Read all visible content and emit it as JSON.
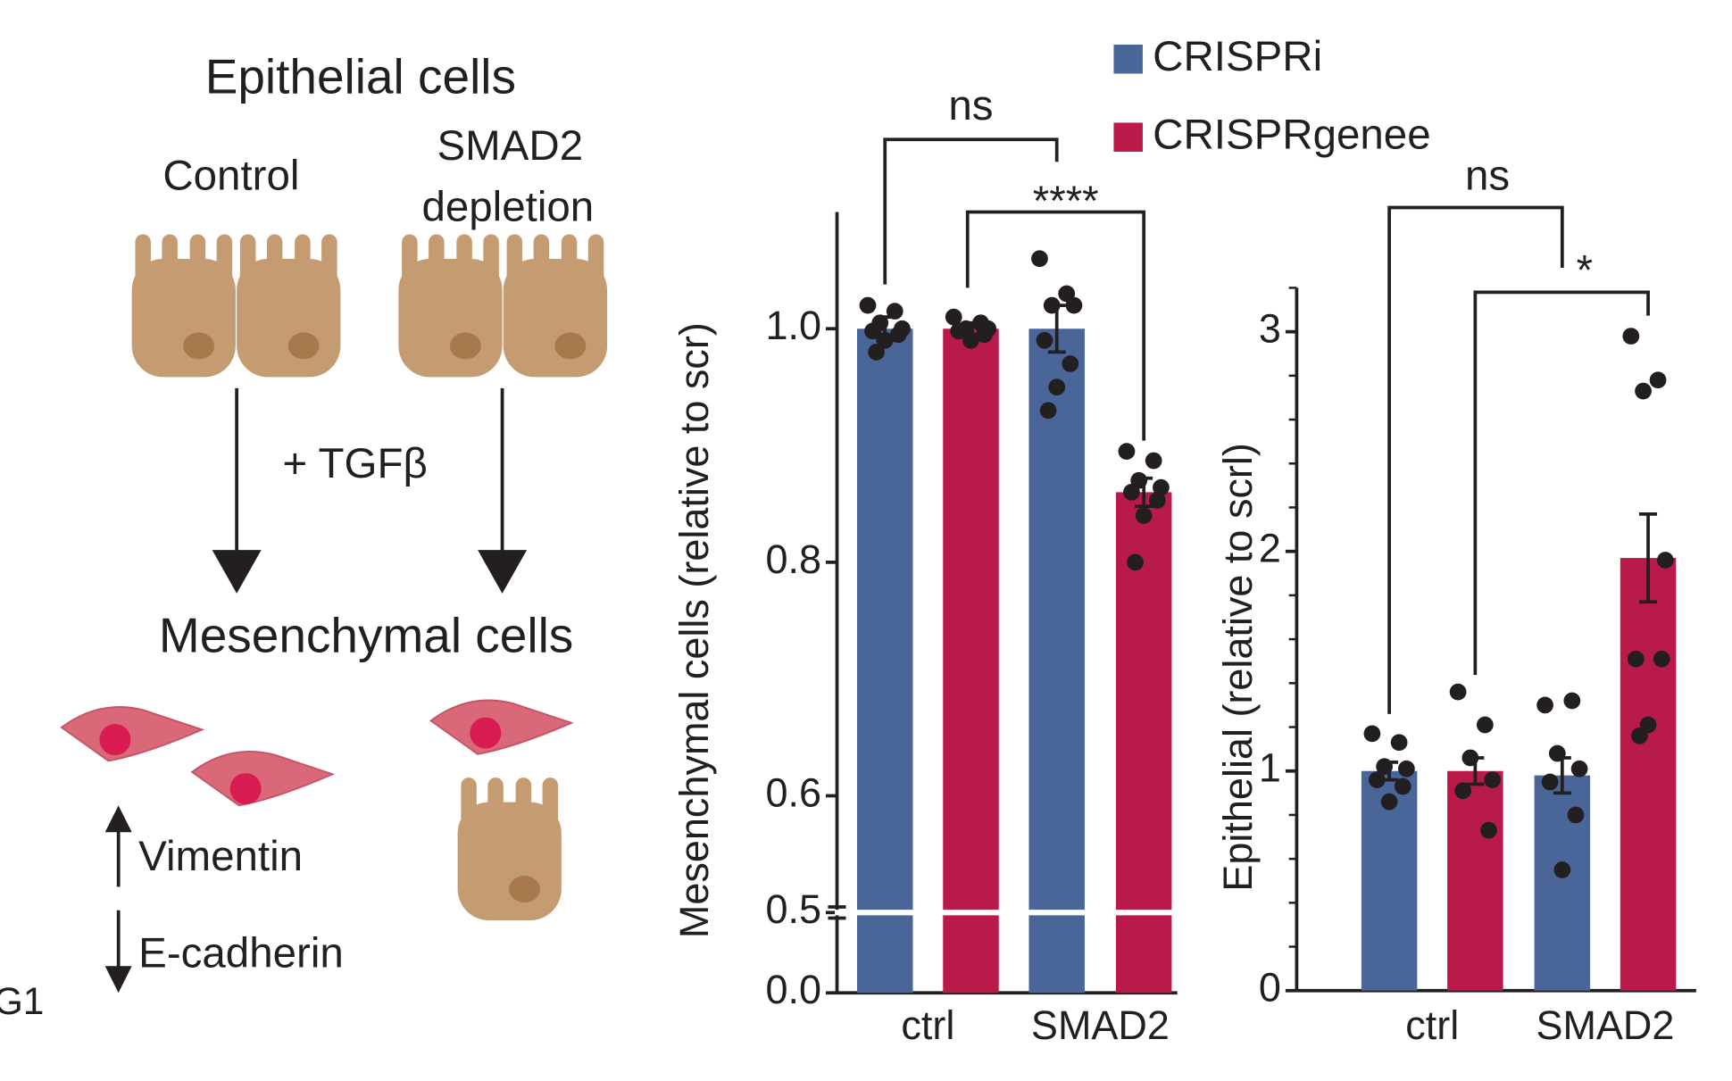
{
  "diagram": {
    "title": "Epithelial cells",
    "control": "Control",
    "depletion": [
      "SMAD2",
      "depletion"
    ],
    "treatment": "+ TGFβ",
    "result": "Mesenchymal cells",
    "up_marker": "Vimentin",
    "down_marker": "E-cadherin",
    "panel_fragment": "G1"
  },
  "chart_data": [
    {
      "type": "bar",
      "y_label": "Mesenchymal cells (relative to scr)",
      "categories": [
        "ctrl",
        "SMAD2"
      ],
      "series": [
        {
          "name": "CRISPRi",
          "color": "#4a6699",
          "values": [
            1.0,
            1.0
          ],
          "errors": [
            0.01,
            0.02
          ],
          "points": [
            [
              1.02,
              1.015,
              1.005,
              1.0,
              0.998,
              0.995,
              0.99,
              0.98
            ],
            [
              1.06,
              1.03,
              1.02,
              1.02,
              0.99,
              0.97,
              0.95,
              0.93
            ]
          ]
        },
        {
          "name": "CRISPRgenee",
          "color": "#b81b4a",
          "values": [
            1.0,
            0.86
          ],
          "errors": [
            0.005,
            0.012
          ],
          "points": [
            [
              1.01,
              1.005,
              1.0,
              1.0,
              0.998,
              0.995,
              0.99
            ],
            [
              0.895,
              0.887,
              0.87,
              0.864,
              0.86,
              0.853,
              0.84,
              0.8
            ]
          ]
        }
      ],
      "ylim": [
        0,
        1.1
      ],
      "yticks": [
        {
          "value": 0,
          "label": "0.0"
        },
        0.5,
        0.6,
        0.8,
        {
          "value": 1,
          "label": "1.0"
        }
      ],
      "axis_break": 0.5,
      "annotations": [
        "ns",
        "****"
      ]
    },
    {
      "type": "bar",
      "y_label": "Epithelial (relative to scrl)",
      "categories": [
        "ctrl",
        "SMAD2"
      ],
      "series": [
        {
          "color": "#4a6699",
          "values": [
            1.0,
            0.98
          ],
          "errors": [
            0.04,
            0.08
          ],
          "points": [
            [
              1.17,
              1.13,
              1.02,
              1.01,
              0.96,
              0.93,
              0.86
            ],
            [
              1.3,
              1.32,
              1.08,
              1.01,
              0.95,
              0.8,
              0.55
            ]
          ]
        },
        {
          "color": "#b81b4a",
          "values": [
            1.0,
            1.97
          ],
          "errors": [
            0.06,
            0.2
          ],
          "points": [
            [
              1.36,
              1.21,
              1.06,
              0.96,
              0.91,
              0.73
            ],
            [
              2.98,
              2.78,
              2.73,
              1.96,
              1.51,
              1.51,
              1.21,
              1.16
            ]
          ]
        }
      ],
      "ylim": [
        0,
        3.2
      ],
      "yticks": [
        0,
        1,
        2,
        3
      ],
      "minor_yticks": [
        0.2,
        0.4,
        0.6,
        0.8,
        1.2,
        1.4,
        1.6,
        1.8,
        2.2,
        2.4,
        2.6,
        2.8,
        3.2
      ],
      "annotations": [
        "ns",
        "*"
      ]
    }
  ]
}
